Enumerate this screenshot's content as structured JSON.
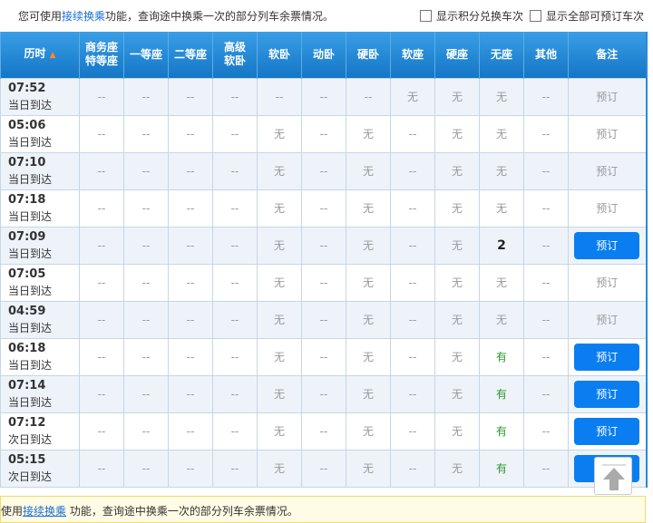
{
  "notice": {
    "prefix": "您可使用",
    "link": "接续换乘",
    "suffix": "功能，查询途中换乘一次的部分列车余票情况。"
  },
  "options": [
    {
      "label": "显示积分兑换车次",
      "checked": false
    },
    {
      "label": "显示全部可预订车次",
      "checked": false
    }
  ],
  "headers": [
    "历时",
    "商务座特等座",
    "一等座",
    "二等座",
    "高级软卧",
    "软卧",
    "动卧",
    "硬卧",
    "软座",
    "硬座",
    "无座",
    "其他",
    "备注"
  ],
  "header_lines": {
    "business": [
      "商务座",
      "特等座"
    ],
    "deluxe": [
      "高级",
      "软卧"
    ]
  },
  "sort_icon": "triangle-up-icon",
  "rows": [
    {
      "time": "07:52",
      "arrive": "当日到达",
      "cells": [
        "--",
        "--",
        "--",
        "--",
        "--",
        "--",
        "--",
        "无",
        "无",
        "无",
        "--"
      ],
      "book": "预订",
      "active": false
    },
    {
      "time": "05:06",
      "arrive": "当日到达",
      "cells": [
        "--",
        "--",
        "--",
        "--",
        "无",
        "--",
        "无",
        "--",
        "无",
        "无",
        "--"
      ],
      "book": "预订",
      "active": false
    },
    {
      "time": "07:10",
      "arrive": "当日到达",
      "cells": [
        "--",
        "--",
        "--",
        "--",
        "无",
        "--",
        "无",
        "--",
        "无",
        "无",
        "--"
      ],
      "book": "预订",
      "active": false
    },
    {
      "time": "07:18",
      "arrive": "当日到达",
      "cells": [
        "--",
        "--",
        "--",
        "--",
        "无",
        "--",
        "无",
        "--",
        "无",
        "无",
        "--"
      ],
      "book": "预订",
      "active": false
    },
    {
      "time": "07:09",
      "arrive": "当日到达",
      "cells": [
        "--",
        "--",
        "--",
        "--",
        "无",
        "--",
        "无",
        "--",
        "无",
        "2",
        "--"
      ],
      "book": "预订",
      "active": true
    },
    {
      "time": "07:05",
      "arrive": "当日到达",
      "cells": [
        "--",
        "--",
        "--",
        "--",
        "无",
        "--",
        "无",
        "--",
        "无",
        "无",
        "--"
      ],
      "book": "预订",
      "active": false
    },
    {
      "time": "04:59",
      "arrive": "当日到达",
      "cells": [
        "--",
        "--",
        "--",
        "--",
        "无",
        "--",
        "无",
        "--",
        "无",
        "无",
        "--"
      ],
      "book": "预订",
      "active": false
    },
    {
      "time": "06:18",
      "arrive": "当日到达",
      "cells": [
        "--",
        "--",
        "--",
        "--",
        "无",
        "--",
        "无",
        "--",
        "无",
        "有",
        "--"
      ],
      "book": "预订",
      "active": true
    },
    {
      "time": "07:14",
      "arrive": "当日到达",
      "cells": [
        "--",
        "--",
        "--",
        "--",
        "无",
        "--",
        "无",
        "--",
        "无",
        "有",
        "--"
      ],
      "book": "预订",
      "active": true
    },
    {
      "time": "07:12",
      "arrive": "次日到达",
      "cells": [
        "--",
        "--",
        "--",
        "--",
        "无",
        "--",
        "无",
        "--",
        "无",
        "有",
        "--"
      ],
      "book": "预订",
      "active": true
    },
    {
      "time": "05:15",
      "arrive": "次日到达",
      "cells": [
        "--",
        "--",
        "--",
        "--",
        "无",
        "--",
        "无",
        "--",
        "无",
        "有",
        "--"
      ],
      "book": "预订",
      "active": true
    }
  ],
  "footer": {
    "prefix": "使用",
    "link": "接续换乘",
    "suffix": " 功能，查询途中换乘一次的部分列车余票情况。"
  },
  "colors": {
    "header": "#1a82d2",
    "book_button": "#0a7ef0",
    "available": "#2a9a2a",
    "row_alt": "#eef3fa"
  },
  "back_to_top_icon": "arrow-up-icon"
}
